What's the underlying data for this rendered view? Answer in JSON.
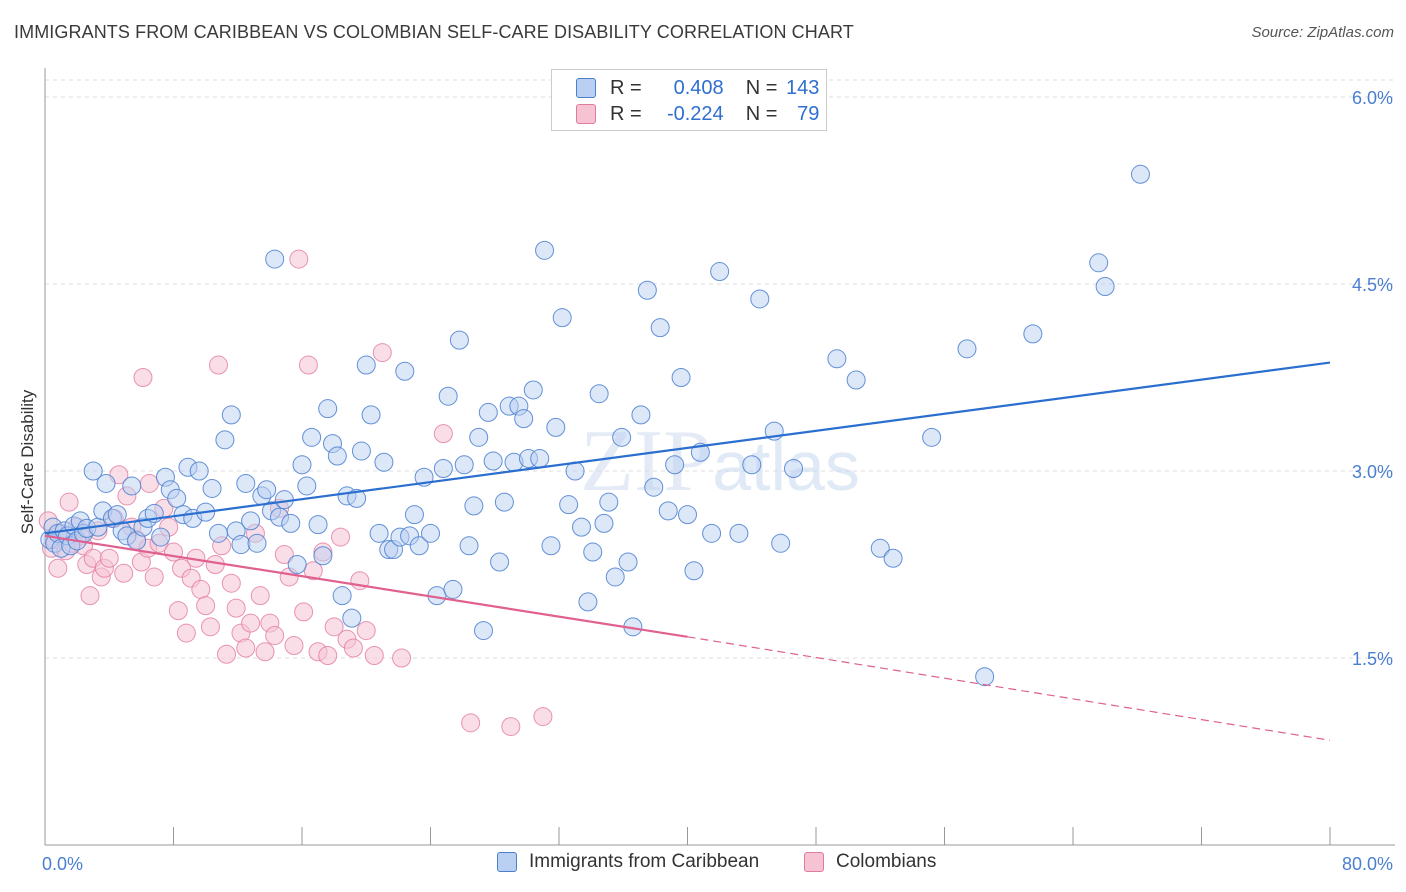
{
  "title": "IMMIGRANTS FROM CARIBBEAN VS COLOMBIAN SELF-CARE DISABILITY CORRELATION CHART",
  "source": "Source: ZipAtlas.com",
  "watermark": "ZIPatlas",
  "colors": {
    "blue": "#4a7fd0",
    "blue_fill": "#b9d0f2",
    "blue_line": "#2a6fcf",
    "pink": "#e27aa0",
    "pink_fill": "#f6c3d3",
    "pink_line": "#e0608f"
  },
  "legend": {
    "rows": [
      {
        "r_label": "R =",
        "r_value": "0.408",
        "n_label": "N =",
        "n_value": "143"
      },
      {
        "r_label": "R =",
        "r_value": "-0.224",
        "n_label": "N =",
        "n_value": "79"
      }
    ]
  },
  "bottom_legend": {
    "series1": "Immigrants from Caribbean",
    "series2": "Colombians"
  },
  "chart_data": {
    "type": "scatter",
    "title": "IMMIGRANTS FROM CARIBBEAN VS COLOMBIAN SELF-CARE DISABILITY CORRELATION CHART",
    "xlabel": "",
    "ylabel": "Self-Care Disability",
    "xlim": [
      0,
      80
    ],
    "ylim": [
      0,
      6.2
    ],
    "x_tick_labels": [
      "0.0%",
      "80.0%"
    ],
    "y_ticks": [
      1.5,
      3.0,
      4.5,
      6.0
    ],
    "y_tick_labels": [
      "1.5%",
      "3.0%",
      "4.5%",
      "6.0%"
    ],
    "grid": "horizontal dashed",
    "series": [
      {
        "name": "Immigrants from Caribbean",
        "color": "#4a7fd0",
        "r": 0.408,
        "n": 143,
        "trend": {
          "x": [
            0,
            80
          ],
          "y": [
            2.5,
            3.87
          ],
          "style": "solid"
        },
        "points": [
          [
            0.3,
            2.45
          ],
          [
            0.5,
            2.55
          ],
          [
            0.6,
            2.42
          ],
          [
            0.8,
            2.5
          ],
          [
            1.0,
            2.38
          ],
          [
            1.2,
            2.52
          ],
          [
            1.4,
            2.48
          ],
          [
            1.6,
            2.4
          ],
          [
            1.8,
            2.56
          ],
          [
            2.0,
            2.44
          ],
          [
            2.2,
            2.6
          ],
          [
            2.4,
            2.5
          ],
          [
            2.6,
            2.54
          ],
          [
            3.0,
            3.0
          ],
          [
            3.3,
            2.55
          ],
          [
            3.6,
            2.68
          ],
          [
            3.8,
            2.9
          ],
          [
            4.2,
            2.62
          ],
          [
            4.5,
            2.65
          ],
          [
            4.8,
            2.52
          ],
          [
            5.1,
            2.48
          ],
          [
            5.4,
            2.88
          ],
          [
            5.7,
            2.44
          ],
          [
            6.1,
            2.55
          ],
          [
            6.4,
            2.62
          ],
          [
            6.8,
            2.66
          ],
          [
            7.2,
            2.47
          ],
          [
            7.5,
            2.95
          ],
          [
            7.8,
            2.85
          ],
          [
            8.2,
            2.78
          ],
          [
            8.6,
            2.65
          ],
          [
            8.9,
            3.03
          ],
          [
            9.2,
            2.62
          ],
          [
            9.6,
            3.0
          ],
          [
            10.0,
            2.67
          ],
          [
            10.4,
            2.86
          ],
          [
            10.8,
            2.5
          ],
          [
            11.2,
            3.25
          ],
          [
            11.6,
            3.45
          ],
          [
            11.9,
            2.52
          ],
          [
            12.2,
            2.41
          ],
          [
            12.5,
            2.9
          ],
          [
            12.8,
            2.6
          ],
          [
            13.2,
            2.42
          ],
          [
            13.5,
            2.8
          ],
          [
            13.8,
            2.85
          ],
          [
            14.1,
            2.68
          ],
          [
            14.3,
            4.7
          ],
          [
            14.6,
            2.63
          ],
          [
            14.9,
            2.77
          ],
          [
            15.3,
            2.58
          ],
          [
            15.7,
            2.25
          ],
          [
            16.0,
            3.05
          ],
          [
            16.3,
            2.88
          ],
          [
            16.6,
            3.27
          ],
          [
            17.0,
            2.57
          ],
          [
            17.3,
            2.32
          ],
          [
            17.6,
            3.5
          ],
          [
            17.9,
            3.22
          ],
          [
            18.2,
            3.12
          ],
          [
            18.5,
            2.0
          ],
          [
            18.8,
            2.8
          ],
          [
            19.1,
            1.82
          ],
          [
            19.4,
            2.78
          ],
          [
            19.7,
            3.16
          ],
          [
            20.0,
            3.85
          ],
          [
            20.3,
            3.45
          ],
          [
            20.8,
            2.5
          ],
          [
            21.1,
            3.07
          ],
          [
            21.4,
            2.37
          ],
          [
            21.7,
            2.37
          ],
          [
            22.1,
            2.47
          ],
          [
            22.4,
            3.8
          ],
          [
            22.7,
            2.48
          ],
          [
            23.0,
            2.65
          ],
          [
            23.3,
            2.4
          ],
          [
            23.6,
            2.95
          ],
          [
            24.0,
            2.5
          ],
          [
            24.4,
            2.0
          ],
          [
            24.8,
            3.02
          ],
          [
            25.1,
            3.6
          ],
          [
            25.4,
            2.05
          ],
          [
            25.8,
            4.05
          ],
          [
            26.1,
            3.05
          ],
          [
            26.4,
            2.4
          ],
          [
            26.7,
            2.72
          ],
          [
            27.0,
            3.27
          ],
          [
            27.3,
            1.72
          ],
          [
            27.6,
            3.47
          ],
          [
            27.9,
            3.08
          ],
          [
            28.3,
            2.27
          ],
          [
            28.6,
            2.75
          ],
          [
            28.9,
            3.52
          ],
          [
            29.2,
            3.07
          ],
          [
            29.5,
            3.52
          ],
          [
            29.8,
            3.42
          ],
          [
            30.1,
            3.1
          ],
          [
            30.4,
            3.65
          ],
          [
            30.8,
            3.1
          ],
          [
            31.1,
            4.77
          ],
          [
            31.5,
            2.4
          ],
          [
            31.8,
            3.35
          ],
          [
            32.2,
            4.23
          ],
          [
            32.6,
            2.73
          ],
          [
            33.0,
            3.0
          ],
          [
            33.4,
            2.55
          ],
          [
            33.8,
            1.95
          ],
          [
            34.1,
            2.35
          ],
          [
            34.5,
            3.62
          ],
          [
            34.8,
            2.58
          ],
          [
            35.1,
            2.75
          ],
          [
            35.5,
            2.15
          ],
          [
            35.9,
            3.27
          ],
          [
            36.3,
            2.27
          ],
          [
            36.6,
            1.75
          ],
          [
            37.1,
            3.45
          ],
          [
            37.5,
            4.45
          ],
          [
            37.9,
            2.87
          ],
          [
            38.3,
            4.15
          ],
          [
            38.8,
            2.68
          ],
          [
            39.2,
            3.05
          ],
          [
            39.6,
            3.75
          ],
          [
            40.0,
            2.65
          ],
          [
            40.4,
            2.2
          ],
          [
            40.8,
            3.15
          ],
          [
            41.5,
            2.5
          ],
          [
            42.0,
            4.6
          ],
          [
            43.2,
            2.5
          ],
          [
            44.0,
            3.05
          ],
          [
            44.5,
            4.38
          ],
          [
            45.4,
            3.32
          ],
          [
            45.8,
            2.42
          ],
          [
            46.6,
            3.02
          ],
          [
            49.3,
            3.9
          ],
          [
            50.5,
            3.73
          ],
          [
            52.0,
            2.38
          ],
          [
            52.8,
            2.3
          ],
          [
            55.2,
            3.27
          ],
          [
            57.4,
            3.98
          ],
          [
            58.5,
            1.35
          ],
          [
            61.5,
            4.1
          ],
          [
            65.6,
            4.67
          ],
          [
            66.0,
            4.48
          ],
          [
            68.2,
            5.38
          ]
        ]
      },
      {
        "name": "Colombians",
        "color": "#e27aa0",
        "r": -0.224,
        "n": 79,
        "trend": {
          "x": [
            0,
            40
          ],
          "y": [
            2.48,
            1.67
          ],
          "style": "solid"
        },
        "trend_dashed": {
          "x": [
            40,
            80
          ],
          "y": [
            1.67,
            0.84
          ],
          "style": "dashed"
        },
        "points": [
          [
            0.2,
            2.6
          ],
          [
            0.4,
            2.38
          ],
          [
            0.6,
            2.45
          ],
          [
            0.8,
            2.22
          ],
          [
            1.0,
            2.5
          ],
          [
            1.3,
            2.36
          ],
          [
            1.5,
            2.75
          ],
          [
            1.7,
            2.42
          ],
          [
            2.0,
            2.55
          ],
          [
            2.2,
            2.48
          ],
          [
            2.4,
            2.4
          ],
          [
            2.6,
            2.25
          ],
          [
            2.8,
            2.0
          ],
          [
            3.0,
            2.3
          ],
          [
            3.3,
            2.52
          ],
          [
            3.5,
            2.15
          ],
          [
            3.7,
            2.22
          ],
          [
            4.0,
            2.3
          ],
          [
            4.3,
            2.62
          ],
          [
            4.6,
            2.97
          ],
          [
            4.9,
            2.18
          ],
          [
            5.1,
            2.8
          ],
          [
            5.4,
            2.55
          ],
          [
            5.7,
            2.45
          ],
          [
            6.0,
            2.27
          ],
          [
            6.1,
            3.75
          ],
          [
            6.4,
            2.38
          ],
          [
            6.8,
            2.15
          ],
          [
            7.1,
            2.42
          ],
          [
            7.4,
            2.7
          ],
          [
            7.7,
            2.55
          ],
          [
            8.0,
            2.35
          ],
          [
            8.3,
            1.88
          ],
          [
            8.5,
            2.22
          ],
          [
            8.8,
            1.7
          ],
          [
            9.1,
            2.14
          ],
          [
            9.4,
            2.3
          ],
          [
            9.7,
            2.05
          ],
          [
            10.0,
            1.92
          ],
          [
            10.3,
            1.75
          ],
          [
            10.6,
            2.25
          ],
          [
            10.8,
            3.85
          ],
          [
            11.0,
            2.4
          ],
          [
            11.3,
            1.53
          ],
          [
            11.6,
            2.1
          ],
          [
            11.9,
            1.9
          ],
          [
            12.2,
            1.7
          ],
          [
            12.5,
            1.58
          ],
          [
            12.8,
            1.78
          ],
          [
            13.1,
            2.5
          ],
          [
            13.4,
            2.0
          ],
          [
            13.7,
            1.55
          ],
          [
            14.0,
            1.78
          ],
          [
            14.3,
            1.68
          ],
          [
            14.6,
            2.7
          ],
          [
            14.9,
            2.33
          ],
          [
            15.2,
            2.15
          ],
          [
            15.5,
            1.6
          ],
          [
            15.8,
            4.7
          ],
          [
            16.1,
            1.87
          ],
          [
            16.4,
            3.85
          ],
          [
            16.7,
            2.2
          ],
          [
            17.0,
            1.55
          ],
          [
            17.3,
            2.35
          ],
          [
            17.6,
            1.52
          ],
          [
            18.0,
            1.75
          ],
          [
            18.4,
            2.47
          ],
          [
            18.8,
            1.65
          ],
          [
            19.2,
            1.58
          ],
          [
            19.6,
            2.12
          ],
          [
            20.0,
            1.72
          ],
          [
            20.5,
            1.52
          ],
          [
            21.0,
            3.95
          ],
          [
            22.2,
            1.5
          ],
          [
            24.8,
            3.3
          ],
          [
            26.5,
            0.98
          ],
          [
            29.0,
            0.95
          ],
          [
            31.0,
            1.03
          ],
          [
            6.5,
            2.9
          ]
        ]
      }
    ]
  }
}
